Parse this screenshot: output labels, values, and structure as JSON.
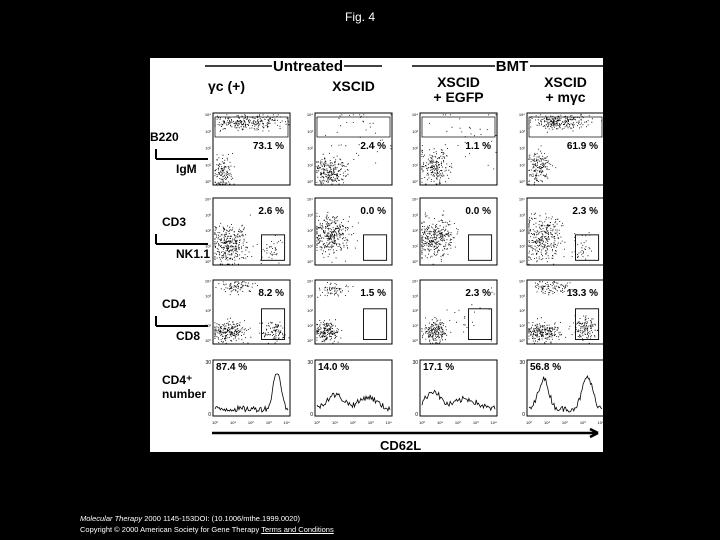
{
  "title": "Fig. 4",
  "figure": {
    "groups": [
      "Untreated",
      "BMT"
    ],
    "columns": [
      [
        "γc (+)"
      ],
      [
        "XSCID"
      ],
      [
        "XSCID",
        "+ EGFP"
      ],
      [
        "XSCID",
        "+ mγc"
      ]
    ],
    "rows": [
      {
        "y_label": [
          "B220"
        ],
        "x_label": "IgM",
        "percents": [
          "73.1 %",
          "2.4 %",
          "1.1 %",
          "61.9 %"
        ]
      },
      {
        "y_label": [
          "CD3"
        ],
        "x_label": "NK1.1",
        "percents": [
          "2.6 %",
          "0.0 %",
          "0.0 %",
          "2.3 %"
        ]
      },
      {
        "y_label": [
          "CD4"
        ],
        "x_label": "CD8",
        "percents": [
          "8.2 %",
          "1.5 %",
          "2.3 %",
          "13.3 %"
        ]
      },
      {
        "y_label": [
          "CD4⁺",
          "number"
        ],
        "percents": [
          "87.4 %",
          "14.0 %",
          "17.1 %",
          "56.8 %"
        ]
      }
    ],
    "x_axis_label": "CD62L",
    "decades": [
      "10⁰",
      "10¹",
      "10²",
      "10³",
      "10⁴"
    ],
    "hist_ticks": [
      "30",
      "0"
    ]
  },
  "footer": {
    "journal": "Molecular Therapy",
    "citation": "2000 1145-153DOI: (10.1006/mthe.1999.0020)",
    "copyright": "Copyright © 2000 American Society for Gene Therapy",
    "link": "Terms and Conditions"
  }
}
